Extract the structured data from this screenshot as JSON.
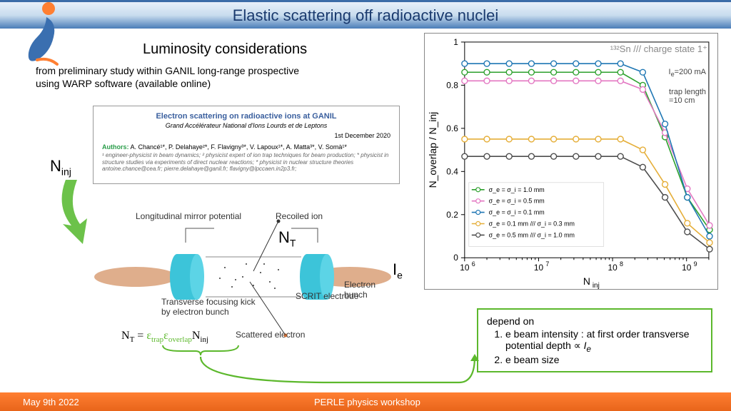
{
  "header": {
    "title": "Elastic scattering off radioactive nuclei"
  },
  "logo": {
    "top_color": "#ff7f32",
    "bottom_color": "#3a6fb0"
  },
  "subtitle": "Luminosity considerations",
  "study_text": {
    "line1": "from preliminary study within GANIL long-range prospective",
    "line2": "using WARP software (available online)"
  },
  "paper": {
    "title": "Electron scattering on radioactive ions at GANIL",
    "subtitle": "Grand Accélérateur National d'Ions Lourds et de Leptons",
    "date": "1st December 2020",
    "authors_label": "Authors:",
    "authors": "A. Chancé¹*, P. Delahaye²*, F. Flavigny³*, V. Lapoux¹*, A. Matta³*, V. Somà¹*",
    "affil": "¹ engineer-physicist in beam dynamics; ² physicist expert of ion trap techniques for beam production; * physicist in structure studies via experiments of direct nuclear reactions; * physicist in nuclear structure theories\nantoine.chance@cea.fr; pierre.delahaye@ganil.fr; flavigny@lpccaen.in2p3.fr;"
  },
  "labels": {
    "Ninj": "N_inj",
    "NT": "N_T",
    "Ie": "I_e"
  },
  "trap_diagram": {
    "mirror_label": "Longitudinal mirror potential",
    "recoiled": "Recoiled ion",
    "transverse": "Transverse focusing kick\nby electron bunch",
    "scrit": "SCRIT electrode",
    "ebunch": "Electron bunch",
    "scattered": "Scattered electron",
    "ring_color": "#3cc4d9",
    "beam_color": "#d9a078"
  },
  "equation": {
    "lhs": "N_T",
    "eq": " = ",
    "term1": "ε_trap",
    "term2": "ε_overlap",
    "term3": "N_inj"
  },
  "chart": {
    "type": "line-scatter",
    "title_inside": "¹³²Sn /// charge state 1⁺",
    "annot1": "I_e=200 mA",
    "annot2": "trap length\n=10 cm",
    "xlabel": "N_inj",
    "ylabel": "N_overlap / N_inj",
    "xscale": "log",
    "xlim": [
      1000000.0,
      2000000000.0
    ],
    "ylim": [
      0,
      1.0
    ],
    "yticks": [
      0,
      0.2,
      0.4,
      0.6,
      0.8,
      1.0
    ],
    "xticks_exp": [
      6,
      7,
      8,
      9
    ],
    "background_color": "#ffffff",
    "axis_color": "#000000",
    "marker": "circle",
    "marker_size": 4,
    "line_width": 1.6,
    "x_points": [
      1000000.0,
      2000000.0,
      4000000.0,
      8000000.0,
      16000000.0,
      32000000.0,
      64000000.0,
      128000000.0,
      256000000.0,
      512000000.0,
      1024000000.0,
      2048000000.0
    ],
    "series": [
      {
        "label": "σ_e = σ_i = 1.0 mm",
        "color": "#2ca02c",
        "y": [
          0.86,
          0.86,
          0.86,
          0.86,
          0.86,
          0.86,
          0.86,
          0.86,
          0.8,
          0.56,
          0.28,
          0.13
        ]
      },
      {
        "label": "σ_e = σ_i = 0.5 mm",
        "color": "#e377c2",
        "y": [
          0.82,
          0.82,
          0.82,
          0.82,
          0.82,
          0.82,
          0.82,
          0.82,
          0.78,
          0.58,
          0.32,
          0.15
        ]
      },
      {
        "label": "σ_e = σ_i = 0.1 mm",
        "color": "#1f77b4",
        "y": [
          0.9,
          0.9,
          0.9,
          0.9,
          0.9,
          0.9,
          0.9,
          0.9,
          0.86,
          0.62,
          0.28,
          0.1
        ]
      },
      {
        "label": "σ_e = 0.1 mm /// σ_i = 0.3 mm",
        "color": "#e5ae38",
        "y": [
          0.55,
          0.55,
          0.55,
          0.55,
          0.55,
          0.55,
          0.55,
          0.55,
          0.5,
          0.34,
          0.16,
          0.07
        ]
      },
      {
        "label": "σ_e = 0.5 mm /// σ_i = 1.0 mm",
        "color": "#4d4d4d",
        "y": [
          0.47,
          0.47,
          0.47,
          0.47,
          0.47,
          0.47,
          0.47,
          0.47,
          0.42,
          0.28,
          0.12,
          0.04
        ]
      }
    ],
    "legend_pos": "lower-left",
    "legend_fontsize": 9
  },
  "depend_box": {
    "heading": "depend on",
    "item1": "e beam intensity : at first order transverse potential depth ∝ I_e",
    "item2": "e beam size"
  },
  "footer": {
    "date": "May 9th 2022",
    "event": "PERLE physics workshop"
  },
  "colors": {
    "header_text": "#1a3a6e",
    "green": "#5cb82c",
    "orange": "#ff7f32",
    "blue": "#3a6fb0"
  }
}
